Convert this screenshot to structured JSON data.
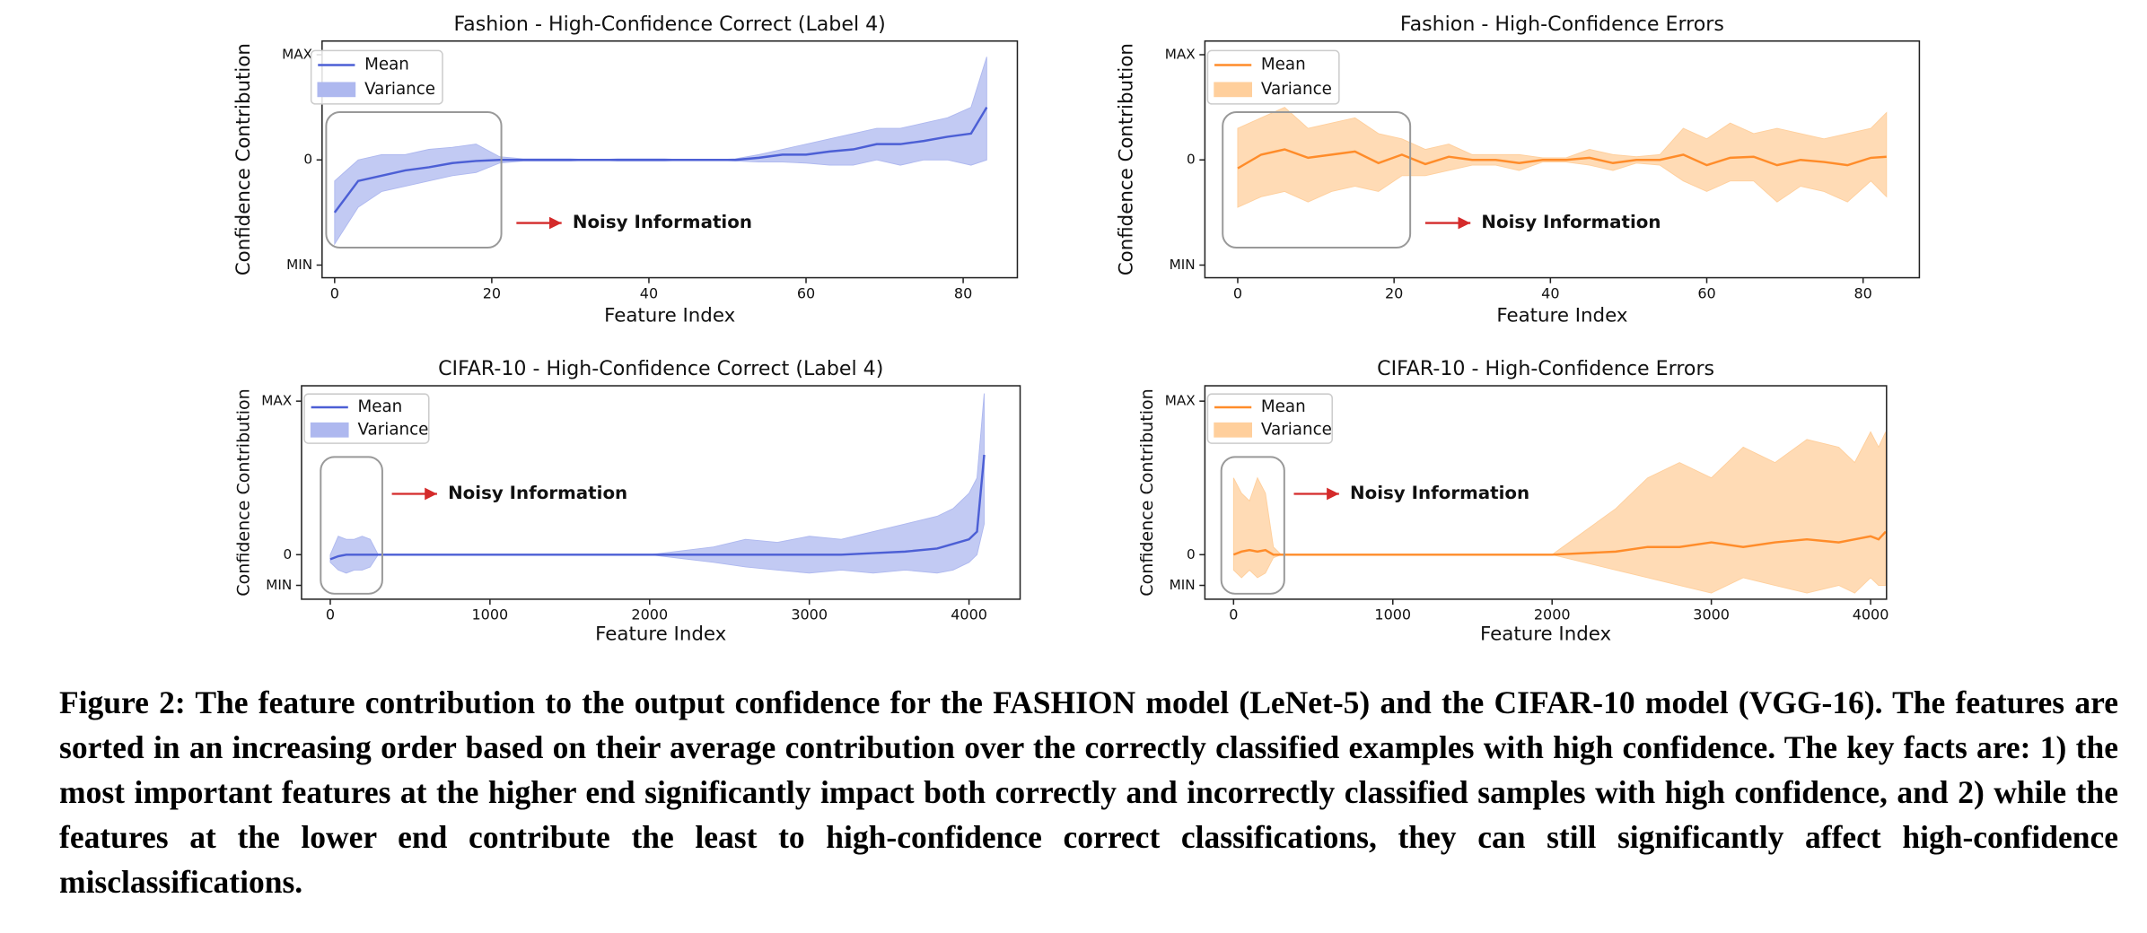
{
  "chart_data": [
    {
      "type": "line",
      "title": "Fashion - High-Confidence Correct  (Label 4)",
      "x_label": "Feature Index",
      "y_label": "Confidence Contribution",
      "annotation": "Noisy Information",
      "xlim": [
        -1.6,
        86.9
      ],
      "xticks": [
        0,
        20,
        40,
        60,
        80
      ],
      "ylim": [
        -1.12,
        1.13
      ],
      "yticks": [
        {
          "value": 1,
          "label": "MAX"
        },
        0,
        {
          "value": -1,
          "label": "MIN"
        }
      ],
      "legend": "upper left",
      "x": [
        0,
        3,
        6,
        9,
        12,
        15,
        18,
        21,
        24,
        27,
        30,
        33,
        36,
        39,
        42,
        45,
        48,
        51,
        54,
        57,
        60,
        63,
        66,
        69,
        72,
        75,
        78,
        81,
        83
      ],
      "series": [
        {
          "name": "Mean",
          "color": "#4c5fd5",
          "values": [
            -0.5,
            -0.2,
            -0.15,
            -0.1,
            -0.07,
            -0.03,
            -0.01,
            0,
            0,
            0,
            0,
            0,
            0,
            0,
            0,
            0,
            0,
            0,
            0.02,
            0.05,
            0.05,
            0.08,
            0.1,
            0.15,
            0.15,
            0.18,
            0.22,
            0.25,
            0.5
          ]
        },
        {
          "name": "Variance",
          "color": "#aeb8ef",
          "upper": [
            -0.2,
            0,
            0.05,
            0.05,
            0.1,
            0.12,
            0.15,
            0.03,
            0.01,
            0.01,
            0.01,
            0,
            0.01,
            0.01,
            0.01,
            0,
            0,
            0.01,
            0.05,
            0.1,
            0.15,
            0.2,
            0.25,
            0.3,
            0.3,
            0.35,
            0.4,
            0.5,
            0.98
          ],
          "lower": [
            -0.8,
            -0.45,
            -0.3,
            -0.25,
            -0.2,
            -0.15,
            -0.12,
            -0.03,
            -0.01,
            -0.01,
            -0.01,
            0,
            -0.01,
            -0.01,
            -0.01,
            0,
            0,
            -0.01,
            -0.02,
            -0.02,
            -0.03,
            -0.05,
            -0.05,
            0,
            -0.05,
            0,
            0,
            -0.05,
            0
          ]
        }
      ]
    },
    {
      "type": "line",
      "title": "Fashion - High-Confidence Errors",
      "x_label": "Feature Index",
      "y_label": "Confidence Contribution",
      "annotation": "Noisy Information",
      "xlim": [
        -4.2,
        87.2
      ],
      "xticks": [
        0,
        20,
        40,
        60,
        80
      ],
      "ylim": [
        -1.12,
        1.13
      ],
      "yticks": [
        {
          "value": 1,
          "label": "MAX"
        },
        0,
        {
          "value": -1,
          "label": "MIN"
        }
      ],
      "legend": "upper left",
      "x": [
        0,
        3,
        6,
        9,
        12,
        15,
        18,
        21,
        24,
        27,
        30,
        33,
        36,
        39,
        42,
        45,
        48,
        51,
        54,
        57,
        60,
        63,
        66,
        69,
        72,
        75,
        78,
        81,
        83
      ],
      "series": [
        {
          "name": "Mean",
          "color": "#ff8c2a",
          "values": [
            -0.08,
            0.05,
            0.1,
            0.02,
            0.05,
            0.08,
            -0.03,
            0.05,
            -0.04,
            0.03,
            0,
            0,
            -0.03,
            0,
            0,
            0.02,
            -0.03,
            0,
            0,
            0.05,
            -0.05,
            0.02,
            0.03,
            -0.05,
            0,
            -0.02,
            -0.05,
            0.02,
            0.03
          ]
        },
        {
          "name": "Variance",
          "color": "#ffcf9c",
          "upper": [
            0.3,
            0.4,
            0.5,
            0.3,
            0.35,
            0.4,
            0.25,
            0.2,
            0.1,
            0.15,
            0.05,
            0.05,
            0.05,
            0.02,
            0.02,
            0.1,
            0.05,
            0.03,
            0.05,
            0.3,
            0.2,
            0.35,
            0.25,
            0.3,
            0.25,
            0.2,
            0.25,
            0.3,
            0.45
          ],
          "lower": [
            -0.45,
            -0.35,
            -0.3,
            -0.4,
            -0.3,
            -0.25,
            -0.3,
            -0.15,
            -0.15,
            -0.1,
            -0.05,
            -0.05,
            -0.1,
            -0.02,
            -0.02,
            -0.05,
            -0.1,
            -0.03,
            -0.05,
            -0.2,
            -0.3,
            -0.2,
            -0.2,
            -0.4,
            -0.25,
            -0.3,
            -0.4,
            -0.2,
            -0.35
          ]
        }
      ]
    },
    {
      "type": "line",
      "title": "CIFAR-10 - High-Confidence Correct  (Label 4)",
      "x_label": "Feature Index",
      "y_label": "Confidence Contribution",
      "annotation": "Noisy  Information",
      "xlim": [
        -180,
        4320
      ],
      "xticks": [
        0,
        1000,
        2000,
        3000,
        4000
      ],
      "ylim": [
        -0.29,
        1.1
      ],
      "yticks": [
        {
          "value": 1,
          "label": "MAX"
        },
        0,
        {
          "value": -0.2,
          "label": "MIN"
        }
      ],
      "legend": "upper left",
      "x": [
        0,
        50,
        100,
        150,
        200,
        250,
        300,
        500,
        1000,
        1500,
        2000,
        2400,
        2600,
        2800,
        3000,
        3200,
        3400,
        3600,
        3800,
        3900,
        4000,
        4050,
        4095
      ],
      "series": [
        {
          "name": "Mean",
          "color": "#4c5fd5",
          "values": [
            -0.03,
            -0.01,
            0,
            0,
            0,
            0,
            0,
            0,
            0,
            0,
            0,
            0,
            0,
            0,
            0,
            0,
            0.01,
            0.02,
            0.04,
            0.07,
            0.1,
            0.15,
            0.65
          ]
        },
        {
          "name": "Variance",
          "color": "#aeb8ef",
          "upper": [
            0,
            0.12,
            0.1,
            0.1,
            0.12,
            0.1,
            0,
            0,
            0,
            0,
            0,
            0.05,
            0.1,
            0.08,
            0.12,
            0.1,
            0.15,
            0.2,
            0.25,
            0.3,
            0.4,
            0.5,
            1.05
          ],
          "lower": [
            -0.05,
            -0.1,
            -0.12,
            -0.1,
            -0.1,
            -0.08,
            0,
            0,
            0,
            0,
            0,
            -0.05,
            -0.08,
            -0.1,
            -0.12,
            -0.1,
            -0.12,
            -0.1,
            -0.12,
            -0.1,
            -0.05,
            0,
            0.2
          ]
        }
      ]
    },
    {
      "type": "line",
      "title": "CIFAR-10 - High-Confidence Errors",
      "x_label": "Feature Index",
      "y_label": "Confidence Contribution",
      "annotation": "Noisy Information",
      "xlim": [
        -180,
        4100
      ],
      "xticks": [
        0,
        1000,
        2000,
        3000,
        4000
      ],
      "ylim": [
        -0.29,
        1.1
      ],
      "yticks": [
        {
          "value": 1,
          "label": "MAX"
        },
        0,
        {
          "value": -0.2,
          "label": "MIN"
        }
      ],
      "legend": "upper left",
      "x": [
        0,
        50,
        100,
        150,
        200,
        250,
        300,
        500,
        1000,
        1500,
        2000,
        2400,
        2600,
        2800,
        3000,
        3200,
        3400,
        3600,
        3800,
        3900,
        4000,
        4050,
        4095
      ],
      "series": [
        {
          "name": "Mean",
          "color": "#ff8c2a",
          "values": [
            0,
            0.02,
            0.03,
            0.02,
            0.03,
            0,
            0,
            0,
            0,
            0,
            0,
            0.02,
            0.05,
            0.05,
            0.08,
            0.05,
            0.08,
            0.1,
            0.08,
            0.1,
            0.12,
            0.1,
            0.15
          ]
        },
        {
          "name": "Variance",
          "color": "#ffcf9c",
          "upper": [
            0.5,
            0.4,
            0.35,
            0.5,
            0.4,
            0.05,
            0,
            0,
            0,
            0,
            0,
            0.3,
            0.5,
            0.6,
            0.5,
            0.7,
            0.6,
            0.75,
            0.7,
            0.6,
            0.8,
            0.7,
            0.8
          ],
          "lower": [
            -0.1,
            -0.15,
            -0.1,
            -0.15,
            -0.12,
            -0.02,
            0,
            0,
            0,
            0,
            0,
            -0.1,
            -0.15,
            -0.2,
            -0.25,
            -0.15,
            -0.2,
            -0.25,
            -0.2,
            -0.25,
            -0.15,
            -0.2,
            -0.2
          ]
        }
      ]
    }
  ],
  "caption": "Figure 2: The feature contribution to the output confidence for the FASHION model (LeNet-5) and the CIFAR-10 model (VGG-16). The features are sorted in an increasing order based on their average contribution over the correctly classified examples with high confidence. The key facts are: 1) the most important features at the higher end significantly impact both correctly and incorrectly classified samples with high confidence, and 2) while the features at the lower end contribute the least to high-confidence correct classifications, they can still significantly affect high-confidence misclassifications."
}
